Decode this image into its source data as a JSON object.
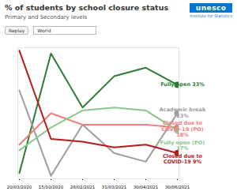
{
  "header": {
    "logo": "unesco",
    "logo_subtitle": "Institute for Statistics",
    "replay": "Replay",
    "region": "World"
  },
  "chart_data": {
    "type": "line",
    "title": "% of students by school closure status",
    "subtitle": "Primary and Secondary levels",
    "categories": [
      "20/03/2020",
      "15/10/2020",
      "28/02/2021",
      "31/03/2021",
      "30/04/2021",
      "30/06/2021"
    ],
    "series": [
      {
        "name": "Fully open",
        "color": "#2e7d32",
        "values": [
          2,
          44,
          25,
          36,
          39,
          33
        ],
        "value_labels": [
          null,
          null,
          null,
          null,
          null,
          "33%"
        ]
      },
      {
        "name": "Academic break",
        "color": "#9e9e9e",
        "values": [
          31,
          1,
          19,
          9,
          6,
          23
        ],
        "value_labels": [
          null,
          null,
          null,
          null,
          null,
          "23%"
        ]
      },
      {
        "name": "Closed due to COVID-19 (PO)",
        "color": "#f08080",
        "values": [
          12,
          23,
          19,
          19,
          19,
          18
        ],
        "value_labels": [
          null,
          null,
          null,
          null,
          null,
          "18%"
        ]
      },
      {
        "name": "Fully open (PO)",
        "color": "#8cc68c",
        "values": [
          10,
          18,
          24,
          25,
          24,
          17
        ],
        "value_labels": [
          null,
          null,
          null,
          null,
          null,
          "17%"
        ]
      },
      {
        "name": "Closed due to COVID-19",
        "color": "#b71c1c",
        "values": [
          45,
          14,
          13,
          11,
          12,
          9
        ],
        "value_labels": [
          null,
          null,
          null,
          null,
          null,
          "9%"
        ]
      }
    ],
    "ylim": [
      0,
      46
    ],
    "yticks": [],
    "tick_labels": "x",
    "grid": false,
    "marker": "circle"
  }
}
